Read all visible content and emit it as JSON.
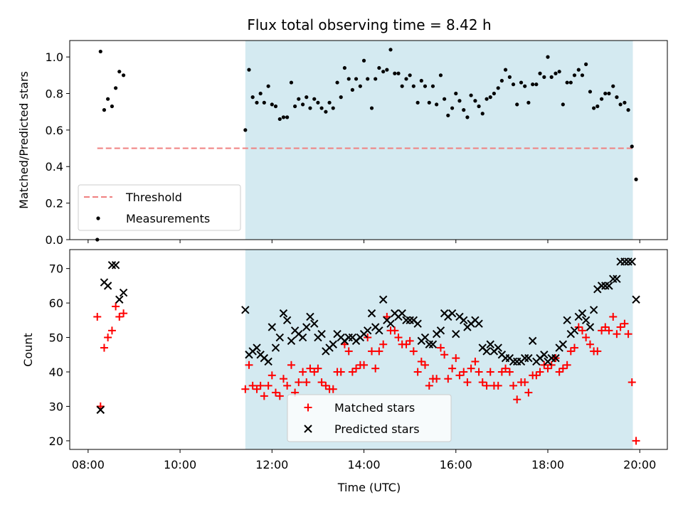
{
  "chart_data": [
    {
      "type": "scatter",
      "title": "Flux total observing time = 8.42 h",
      "xlabel": "",
      "ylabel": "Matched/Predicted stars",
      "ylim": [
        0,
        1.09
      ],
      "xlim": [
        7.6,
        20.6
      ],
      "yticks": [
        "0.0",
        "0.2",
        "0.4",
        "0.6",
        "0.8",
        "1.0"
      ],
      "ytick_values": [
        0,
        0.2,
        0.4,
        0.6,
        0.8,
        1.0
      ],
      "shaded_interval": [
        11.42,
        19.85
      ],
      "shade_color": "#d4eaf1",
      "legend_position": "lower-left",
      "threshold": {
        "name": "Threshold",
        "value": 0.5,
        "x_range": [
          8.2,
          19.85
        ],
        "color": "#f08080"
      },
      "measurements": {
        "name": "Measurements",
        "color": "#000000",
        "points": [
          [
            8.2,
            0.0
          ],
          [
            8.27,
            1.03
          ],
          [
            8.35,
            0.71
          ],
          [
            8.43,
            0.77
          ],
          [
            8.52,
            0.73
          ],
          [
            8.6,
            0.83
          ],
          [
            8.68,
            0.92
          ],
          [
            8.77,
            0.9
          ],
          [
            11.42,
            0.6
          ],
          [
            11.5,
            0.93
          ],
          [
            11.58,
            0.78
          ],
          [
            11.67,
            0.75
          ],
          [
            11.75,
            0.8
          ],
          [
            11.83,
            0.75
          ],
          [
            11.92,
            0.84
          ],
          [
            12.0,
            0.74
          ],
          [
            12.08,
            0.73
          ],
          [
            12.17,
            0.66
          ],
          [
            12.25,
            0.67
          ],
          [
            12.33,
            0.67
          ],
          [
            12.42,
            0.86
          ],
          [
            12.5,
            0.73
          ],
          [
            12.58,
            0.77
          ],
          [
            12.67,
            0.74
          ],
          [
            12.75,
            0.78
          ],
          [
            12.83,
            0.72
          ],
          [
            12.92,
            0.77
          ],
          [
            13.0,
            0.75
          ],
          [
            13.08,
            0.72
          ],
          [
            13.17,
            0.7
          ],
          [
            13.25,
            0.75
          ],
          [
            13.33,
            0.72
          ],
          [
            13.42,
            0.86
          ],
          [
            13.5,
            0.78
          ],
          [
            13.58,
            0.94
          ],
          [
            13.67,
            0.88
          ],
          [
            13.75,
            0.82
          ],
          [
            13.83,
            0.88
          ],
          [
            13.92,
            0.84
          ],
          [
            14.0,
            0.98
          ],
          [
            14.08,
            0.88
          ],
          [
            14.17,
            0.72
          ],
          [
            14.25,
            0.88
          ],
          [
            14.33,
            0.94
          ],
          [
            14.42,
            0.92
          ],
          [
            14.5,
            0.93
          ],
          [
            14.58,
            1.04
          ],
          [
            14.67,
            0.91
          ],
          [
            14.75,
            0.91
          ],
          [
            14.83,
            0.84
          ],
          [
            14.92,
            0.88
          ],
          [
            15.0,
            0.9
          ],
          [
            15.08,
            0.84
          ],
          [
            15.17,
            0.75
          ],
          [
            15.25,
            0.87
          ],
          [
            15.33,
            0.84
          ],
          [
            15.42,
            0.75
          ],
          [
            15.5,
            0.84
          ],
          [
            15.58,
            0.74
          ],
          [
            15.67,
            0.9
          ],
          [
            15.75,
            0.77
          ],
          [
            15.83,
            0.68
          ],
          [
            15.92,
            0.72
          ],
          [
            16.0,
            0.8
          ],
          [
            16.08,
            0.76
          ],
          [
            16.17,
            0.71
          ],
          [
            16.25,
            0.67
          ],
          [
            16.33,
            0.79
          ],
          [
            16.42,
            0.76
          ],
          [
            16.5,
            0.73
          ],
          [
            16.58,
            0.69
          ],
          [
            16.67,
            0.77
          ],
          [
            16.75,
            0.78
          ],
          [
            16.83,
            0.8
          ],
          [
            16.92,
            0.83
          ],
          [
            17.0,
            0.87
          ],
          [
            17.08,
            0.93
          ],
          [
            17.17,
            0.89
          ],
          [
            17.25,
            0.85
          ],
          [
            17.33,
            0.74
          ],
          [
            17.42,
            0.86
          ],
          [
            17.5,
            0.84
          ],
          [
            17.58,
            0.75
          ],
          [
            17.67,
            0.85
          ],
          [
            17.75,
            0.85
          ],
          [
            17.83,
            0.91
          ],
          [
            17.92,
            0.89
          ],
          [
            18.0,
            1.0
          ],
          [
            18.08,
            0.89
          ],
          [
            18.17,
            0.91
          ],
          [
            18.25,
            0.92
          ],
          [
            18.33,
            0.74
          ],
          [
            18.42,
            0.86
          ],
          [
            18.5,
            0.86
          ],
          [
            18.58,
            0.9
          ],
          [
            18.67,
            0.93
          ],
          [
            18.75,
            0.9
          ],
          [
            18.83,
            0.96
          ],
          [
            18.92,
            0.81
          ],
          [
            19.0,
            0.72
          ],
          [
            19.08,
            0.73
          ],
          [
            19.17,
            0.77
          ],
          [
            19.25,
            0.8
          ],
          [
            19.33,
            0.8
          ],
          [
            19.42,
            0.84
          ],
          [
            19.5,
            0.78
          ],
          [
            19.58,
            0.74
          ],
          [
            19.67,
            0.75
          ],
          [
            19.75,
            0.71
          ],
          [
            19.83,
            0.51
          ],
          [
            19.92,
            0.33
          ]
        ]
      }
    },
    {
      "type": "scatter",
      "xlabel": "Time (UTC)",
      "ylabel": "Count",
      "ylim": [
        17.5,
        75.5
      ],
      "xlim": [
        7.6,
        20.6
      ],
      "xticks": [
        "08:00",
        "10:00",
        "12:00",
        "14:00",
        "16:00",
        "18:00",
        "20:00"
      ],
      "xtick_values": [
        8,
        10,
        12,
        14,
        16,
        18,
        20
      ],
      "yticks": [
        "20",
        "30",
        "40",
        "50",
        "60",
        "70"
      ],
      "ytick_values": [
        20,
        30,
        40,
        50,
        60,
        70
      ],
      "shaded_interval": [
        11.42,
        19.85
      ],
      "shade_color": "#d4eaf1",
      "legend_position": "lower-center",
      "series": [
        {
          "name": "Matched stars",
          "marker": "plus",
          "color": "#ff0000",
          "x": [
            8.2,
            8.27,
            8.35,
            8.43,
            8.52,
            8.6,
            8.68,
            8.77,
            11.42,
            11.5,
            11.58,
            11.67,
            11.75,
            11.83,
            11.92,
            12.0,
            12.08,
            12.17,
            12.25,
            12.33,
            12.42,
            12.5,
            12.58,
            12.67,
            12.75,
            12.83,
            12.92,
            13.0,
            13.08,
            13.17,
            13.25,
            13.33,
            13.42,
            13.5,
            13.58,
            13.67,
            13.75,
            13.83,
            13.92,
            14.0,
            14.08,
            14.17,
            14.25,
            14.33,
            14.42,
            14.5,
            14.58,
            14.67,
            14.75,
            14.83,
            14.92,
            15.0,
            15.08,
            15.17,
            15.25,
            15.33,
            15.42,
            15.5,
            15.58,
            15.67,
            15.75,
            15.83,
            15.92,
            16.0,
            16.08,
            16.17,
            16.25,
            16.33,
            16.42,
            16.5,
            16.58,
            16.67,
            16.75,
            16.83,
            16.92,
            17.0,
            17.08,
            17.17,
            17.25,
            17.33,
            17.42,
            17.5,
            17.58,
            17.67,
            17.75,
            17.83,
            17.92,
            18.0,
            18.08,
            18.17,
            18.25,
            18.33,
            18.42,
            18.5,
            18.58,
            18.67,
            18.75,
            18.83,
            18.92,
            19.0,
            19.08,
            19.17,
            19.25,
            19.33,
            19.42,
            19.5,
            19.58,
            19.67,
            19.75,
            19.83,
            19.92
          ],
          "values": [
            56,
            30,
            47,
            50,
            52,
            59,
            56,
            57,
            35,
            42,
            36,
            35,
            36,
            33,
            36,
            39,
            34,
            33,
            38,
            36,
            42,
            34,
            37,
            40,
            37,
            41,
            40,
            41,
            37,
            36,
            35,
            35,
            40,
            40,
            48,
            46,
            40,
            41,
            42,
            42,
            50,
            46,
            41,
            46,
            48,
            56,
            52,
            52,
            50,
            48,
            48,
            49,
            46,
            40,
            43,
            42,
            36,
            38,
            38,
            47,
            45,
            38,
            41,
            44,
            39,
            40,
            37,
            41,
            43,
            40,
            37,
            36,
            40,
            36,
            36,
            40,
            41,
            40,
            36,
            32,
            37,
            37,
            34,
            39,
            39,
            40,
            42,
            41,
            42,
            44,
            40,
            41,
            42,
            46,
            47,
            53,
            52,
            50,
            48,
            46,
            46,
            52,
            53,
            52,
            56,
            51,
            53,
            54,
            51,
            37,
            20
          ]
        },
        {
          "name": "Predicted stars",
          "marker": "x",
          "color": "#000000",
          "x": [
            8.27,
            8.35,
            8.43,
            8.52,
            8.6,
            8.68,
            8.77,
            8.27,
            11.42,
            11.5,
            11.58,
            11.67,
            11.75,
            11.83,
            11.92,
            12.0,
            12.08,
            12.17,
            12.25,
            12.33,
            12.42,
            12.5,
            12.58,
            12.67,
            12.75,
            12.83,
            12.92,
            13.0,
            13.08,
            13.17,
            13.25,
            13.33,
            13.42,
            13.5,
            13.58,
            13.67,
            13.75,
            13.83,
            13.92,
            14.0,
            14.08,
            14.17,
            14.25,
            14.33,
            14.42,
            14.5,
            14.58,
            14.67,
            14.75,
            14.83,
            14.92,
            15.0,
            15.08,
            15.17,
            15.25,
            15.33,
            15.42,
            15.5,
            15.58,
            15.67,
            15.75,
            15.83,
            15.92,
            16.0,
            16.08,
            16.17,
            16.25,
            16.33,
            16.42,
            16.5,
            16.58,
            16.67,
            16.75,
            16.83,
            16.92,
            17.0,
            17.08,
            17.17,
            17.25,
            17.33,
            17.42,
            17.5,
            17.58,
            17.67,
            17.75,
            17.83,
            17.92,
            18.0,
            18.08,
            18.17,
            18.25,
            18.33,
            18.42,
            18.5,
            18.58,
            18.67,
            18.75,
            18.83,
            18.92,
            19.0,
            19.08,
            19.17,
            19.25,
            19.33,
            19.42,
            19.5,
            19.58,
            19.67,
            19.75,
            19.83,
            19.92
          ],
          "values": [
            29,
            66,
            65,
            71,
            71,
            61,
            63,
            29,
            58,
            45,
            46,
            47,
            45,
            44,
            43,
            53,
            47,
            50,
            57,
            55,
            49,
            52,
            51,
            50,
            53,
            56,
            54,
            50,
            51,
            46,
            47,
            48,
            51,
            50,
            49,
            50,
            50,
            49,
            50,
            51,
            52,
            57,
            53,
            52,
            61,
            55,
            54,
            57,
            56,
            57,
            55,
            55,
            55,
            54,
            49,
            50,
            48,
            48,
            51,
            52,
            57,
            56,
            57,
            51,
            56,
            55,
            53,
            54,
            55,
            54,
            47,
            46,
            48,
            46,
            47,
            45,
            44,
            44,
            43,
            43,
            43,
            44,
            44,
            49,
            43,
            44,
            45,
            43,
            44,
            44,
            47,
            48,
            55,
            51,
            52,
            56,
            57,
            55,
            53,
            58,
            64,
            65,
            65,
            65,
            67,
            67,
            72,
            72,
            72,
            72,
            61
          ]
        }
      ]
    }
  ]
}
